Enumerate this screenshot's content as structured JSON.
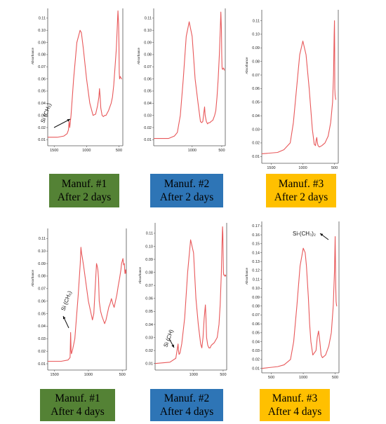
{
  "colors": {
    "line": "#e8585a",
    "axis": "#555555",
    "green": "#548235",
    "blue": "#2e75b6",
    "gold": "#ffc000"
  },
  "chart_data": [
    {
      "type": "line",
      "ylabel": "Absorbance",
      "x_ticks": [
        1500,
        1000,
        500
      ],
      "y_ticks": [
        0.01,
        0.02,
        0.03,
        0.04,
        0.05,
        0.06,
        0.07,
        0.08,
        0.09,
        0.1,
        0.11
      ],
      "xlim": [
        1600,
        440
      ],
      "ylim": [
        0.005,
        0.118
      ],
      "x": [
        1600,
        1450,
        1350,
        1300,
        1280,
        1270,
        1260,
        1240,
        1200,
        1150,
        1100,
        1080,
        1050,
        1000,
        950,
        900,
        860,
        830,
        810,
        800,
        790,
        780,
        760,
        740,
        720,
        700,
        660,
        620,
        600,
        580,
        560,
        540,
        520,
        515,
        505,
        500,
        495,
        490,
        480,
        470,
        460,
        455
      ],
      "y": [
        0.012,
        0.012,
        0.013,
        0.015,
        0.018,
        0.025,
        0.02,
        0.03,
        0.06,
        0.09,
        0.1,
        0.098,
        0.085,
        0.06,
        0.04,
        0.03,
        0.031,
        0.038,
        0.045,
        0.052,
        0.045,
        0.036,
        0.03,
        0.029,
        0.03,
        0.03,
        0.034,
        0.04,
        0.045,
        0.055,
        0.07,
        0.085,
        0.11,
        0.116,
        0.105,
        0.09,
        0.065,
        0.06,
        0.062,
        0.061,
        0.06,
        0.06
      ]
    },
    {
      "type": "line",
      "ylabel": "Absorbance",
      "x_ticks": [
        1000,
        500
      ],
      "y_ticks": [
        0.01,
        0.02,
        0.03,
        0.04,
        0.05,
        0.06,
        0.07,
        0.08,
        0.09,
        0.1,
        0.11
      ],
      "xlim": [
        1650,
        440
      ],
      "ylim": [
        0.005,
        0.118
      ],
      "x": [
        1650,
        1400,
        1300,
        1250,
        1200,
        1150,
        1100,
        1050,
        1000,
        950,
        900,
        860,
        840,
        820,
        800,
        790,
        780,
        760,
        740,
        720,
        700,
        680,
        650,
        620,
        600,
        580,
        560,
        540,
        525,
        515,
        505,
        500,
        495,
        490,
        480,
        470,
        460,
        455
      ],
      "y": [
        0.011,
        0.011,
        0.013,
        0.016,
        0.03,
        0.06,
        0.095,
        0.107,
        0.095,
        0.06,
        0.04,
        0.025,
        0.024,
        0.025,
        0.033,
        0.037,
        0.03,
        0.025,
        0.023,
        0.024,
        0.024,
        0.025,
        0.026,
        0.03,
        0.034,
        0.045,
        0.06,
        0.08,
        0.1,
        0.115,
        0.1,
        0.08,
        0.07,
        0.068,
        0.068,
        0.069,
        0.068,
        0.067
      ]
    },
    {
      "type": "line",
      "ylabel": "Absorbance",
      "x_ticks": [
        1500,
        1000,
        500
      ],
      "y_ticks": [
        0.01,
        0.02,
        0.03,
        0.04,
        0.05,
        0.06,
        0.07,
        0.08,
        0.09,
        0.1,
        0.11
      ],
      "xlim": [
        1650,
        440
      ],
      "ylim": [
        0.005,
        0.118
      ],
      "x": [
        1650,
        1400,
        1300,
        1200,
        1150,
        1100,
        1050,
        1000,
        950,
        900,
        850,
        820,
        800,
        790,
        780,
        770,
        760,
        740,
        700,
        650,
        600,
        560,
        530,
        515,
        505,
        500,
        497,
        495,
        490,
        480,
        475
      ],
      "y": [
        0.012,
        0.013,
        0.015,
        0.02,
        0.035,
        0.06,
        0.085,
        0.095,
        0.085,
        0.06,
        0.03,
        0.019,
        0.018,
        0.022,
        0.024,
        0.02,
        0.018,
        0.017,
        0.018,
        0.02,
        0.025,
        0.035,
        0.05,
        0.07,
        0.1,
        0.11,
        0.09,
        0.06,
        0.055,
        0.052,
        0.052
      ]
    },
    {
      "type": "line",
      "ylabel": "Absorbance",
      "x_ticks": [
        1500,
        1000,
        500
      ],
      "y_ticks": [
        0.01,
        0.02,
        0.03,
        0.04,
        0.05,
        0.06,
        0.07,
        0.08,
        0.09,
        0.1,
        0.11
      ],
      "xlim": [
        1600,
        440
      ],
      "ylim": [
        0.005,
        0.118
      ],
      "x": [
        1600,
        1400,
        1300,
        1270,
        1262,
        1255,
        1250,
        1230,
        1200,
        1150,
        1120,
        1110,
        1100,
        1090,
        1070,
        1050,
        1000,
        980,
        960,
        940,
        920,
        900,
        880,
        870,
        860,
        850,
        840,
        820,
        800,
        780,
        760,
        740,
        720,
        700,
        680,
        660,
        640,
        620,
        600,
        580,
        560,
        540,
        520,
        510,
        500,
        490,
        480,
        470,
        460,
        450,
        445
      ],
      "y": [
        0.012,
        0.012,
        0.013,
        0.015,
        0.035,
        0.02,
        0.018,
        0.022,
        0.03,
        0.065,
        0.09,
        0.103,
        0.098,
        0.095,
        0.088,
        0.08,
        0.06,
        0.055,
        0.05,
        0.045,
        0.05,
        0.07,
        0.09,
        0.088,
        0.085,
        0.078,
        0.06,
        0.052,
        0.048,
        0.045,
        0.042,
        0.045,
        0.05,
        0.055,
        0.058,
        0.062,
        0.058,
        0.055,
        0.06,
        0.065,
        0.072,
        0.078,
        0.085,
        0.09,
        0.092,
        0.094,
        0.089,
        0.09,
        0.082,
        0.085,
        0.082
      ]
    },
    {
      "type": "line",
      "ylabel": "Absorbance",
      "x_ticks": [
        1000,
        500
      ],
      "y_ticks": [
        0.01,
        0.02,
        0.03,
        0.04,
        0.05,
        0.06,
        0.07,
        0.08,
        0.09,
        0.1,
        0.11
      ],
      "xlim": [
        1650,
        440
      ],
      "ylim": [
        0.005,
        0.118
      ],
      "x": [
        1650,
        1400,
        1300,
        1262,
        1255,
        1245,
        1230,
        1200,
        1150,
        1100,
        1050,
        1000,
        960,
        920,
        880,
        860,
        840,
        820,
        800,
        790,
        780,
        760,
        740,
        720,
        700,
        650,
        600,
        570,
        550,
        530,
        520,
        510,
        505,
        500,
        495,
        490,
        480,
        470,
        460,
        455
      ],
      "y": [
        0.01,
        0.011,
        0.014,
        0.025,
        0.02,
        0.017,
        0.018,
        0.025,
        0.045,
        0.08,
        0.105,
        0.095,
        0.06,
        0.04,
        0.025,
        0.022,
        0.03,
        0.045,
        0.055,
        0.045,
        0.03,
        0.024,
        0.022,
        0.022,
        0.024,
        0.026,
        0.03,
        0.04,
        0.055,
        0.08,
        0.1,
        0.115,
        0.11,
        0.095,
        0.08,
        0.078,
        0.078,
        0.077,
        0.078,
        0.077
      ]
    },
    {
      "type": "line",
      "ylabel": "Absorbance",
      "x_ticks": [
        500,
        1000,
        500
      ],
      "y_ticks": [
        0.01,
        0.02,
        0.03,
        0.04,
        0.05,
        0.06,
        0.07,
        0.08,
        0.09,
        0.1,
        0.11,
        0.12,
        0.13,
        0.14,
        0.15,
        0.16,
        0.17
      ],
      "xlim": [
        1650,
        440
      ],
      "ylim": [
        0.005,
        0.175
      ],
      "x": [
        1650,
        1400,
        1300,
        1200,
        1150,
        1100,
        1050,
        1000,
        970,
        950,
        920,
        900,
        880,
        850,
        800,
        780,
        760,
        740,
        720,
        700,
        650,
        600,
        560,
        530,
        510,
        500,
        495,
        490,
        485,
        480,
        475,
        470
      ],
      "y": [
        0.01,
        0.012,
        0.014,
        0.02,
        0.04,
        0.08,
        0.125,
        0.145,
        0.14,
        0.125,
        0.09,
        0.06,
        0.04,
        0.025,
        0.03,
        0.045,
        0.052,
        0.04,
        0.025,
        0.022,
        0.025,
        0.035,
        0.05,
        0.08,
        0.12,
        0.158,
        0.13,
        0.1,
        0.085,
        0.082,
        0.08,
        0.08
      ]
    }
  ],
  "annotations": {
    "p1": "Si (CH₃)",
    "p4": "Si (CH₃)",
    "p5": "Si (CH)",
    "p6": "Si-(CH₃)₂"
  },
  "labels": [
    {
      "line1": "Manuf. #1",
      "line2": "After 2 days"
    },
    {
      "line1": "Manuf. #2",
      "line2": "After 2 days"
    },
    {
      "line1": "Manuf. #3",
      "line2": "After 2 days"
    },
    {
      "line1": "Manuf. #1",
      "line2": "After 4 days"
    },
    {
      "line1": "Manuf. #2",
      "line2": "After 4 days"
    },
    {
      "line1": "Manuf. #3",
      "line2": "After 4 days"
    }
  ]
}
